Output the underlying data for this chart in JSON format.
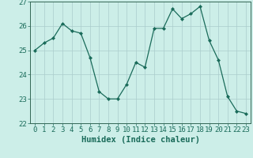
{
  "x": [
    0,
    1,
    2,
    3,
    4,
    5,
    6,
    7,
    8,
    9,
    10,
    11,
    12,
    13,
    14,
    15,
    16,
    17,
    18,
    19,
    20,
    21,
    22,
    23
  ],
  "y": [
    25.0,
    25.3,
    25.5,
    26.1,
    25.8,
    25.7,
    24.7,
    23.3,
    23.0,
    23.0,
    23.6,
    24.5,
    24.3,
    25.9,
    25.9,
    26.7,
    26.3,
    26.5,
    26.8,
    25.4,
    24.6,
    23.1,
    22.5,
    22.4
  ],
  "xlabel": "Humidex (Indice chaleur)",
  "ylim": [
    22,
    27
  ],
  "xlim": [
    -0.5,
    23.5
  ],
  "yticks": [
    22,
    23,
    24,
    25,
    26,
    27
  ],
  "xticks": [
    0,
    1,
    2,
    3,
    4,
    5,
    6,
    7,
    8,
    9,
    10,
    11,
    12,
    13,
    14,
    15,
    16,
    17,
    18,
    19,
    20,
    21,
    22,
    23
  ],
  "line_color": "#1a6b5a",
  "marker_color": "#1a6b5a",
  "bg_color": "#cceee8",
  "grid_color": "#aacccc",
  "axis_color": "#336655",
  "tick_label_color": "#1a6b5a",
  "xlabel_color": "#1a6b5a",
  "xlabel_fontsize": 7.5,
  "tick_fontsize": 6.5
}
